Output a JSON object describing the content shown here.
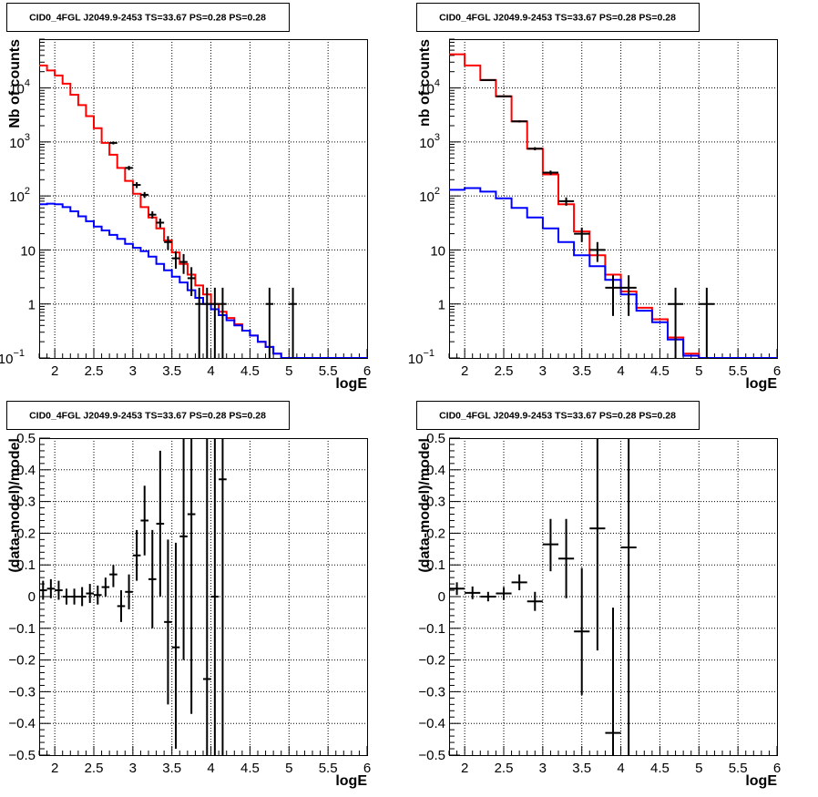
{
  "chart_data": [
    {
      "type": "line",
      "title": "CID0_4FGL J2049.9-2453 TS=33.67 PS=0.28 PS=0.28",
      "xlabel": "logE",
      "ylabel": "Nb of counts",
      "xscale": "linear",
      "yscale": "log",
      "xlim": [
        1.8,
        6.0
      ],
      "ylim": [
        0.1,
        80000
      ],
      "grid": true,
      "xticks": [
        "2",
        "2.5",
        "3",
        "3.5",
        "4",
        "4.5",
        "5",
        "5.5",
        "6"
      ],
      "yticks": [
        {
          "v": 0.1,
          "label": "10",
          "sup": "−1"
        },
        {
          "v": 1,
          "label": "1",
          "sup": ""
        },
        {
          "v": 10,
          "label": "10",
          "sup": ""
        },
        {
          "v": 100,
          "label": "10",
          "sup": "2"
        },
        {
          "v": 1000,
          "label": "10",
          "sup": "3"
        },
        {
          "v": 10000,
          "label": "10",
          "sup": "4"
        }
      ],
      "series": [
        {
          "color": "#ff0000",
          "style": "step",
          "edges": [
            1.8,
            1.9,
            2.0,
            2.1,
            2.2,
            2.3,
            2.4,
            2.5,
            2.6,
            2.7,
            2.8,
            2.9,
            3.0,
            3.1,
            3.2,
            3.3,
            3.4,
            3.5,
            3.6,
            3.7,
            3.8,
            3.9,
            4.0,
            4.1,
            4.2,
            4.3,
            4.4,
            4.5,
            4.6,
            4.7,
            4.8,
            4.9,
            5.0,
            5.1,
            5.2,
            5.3,
            5.4,
            5.5,
            5.6,
            5.7,
            5.8,
            5.9,
            6.0
          ],
          "values": [
            26000,
            21000,
            17000,
            12000,
            7500,
            4800,
            3000,
            1800,
            960,
            580,
            330,
            190,
            110,
            62,
            40,
            25,
            15,
            9,
            5.5,
            3.5,
            2.2,
            1.5,
            1.0,
            0.72,
            0.55,
            0.42,
            0.32,
            0.26,
            0.2,
            0.16,
            0.12,
            0.1,
            0.1,
            0.1,
            0.1,
            0.1,
            0.1,
            0.1,
            0.1,
            0.1,
            0.1,
            0.1
          ]
        },
        {
          "color": "#0000ff",
          "style": "step",
          "edges": [
            1.8,
            1.9,
            2.0,
            2.1,
            2.2,
            2.3,
            2.4,
            2.5,
            2.6,
            2.7,
            2.8,
            2.9,
            3.0,
            3.1,
            3.2,
            3.3,
            3.4,
            3.5,
            3.6,
            3.7,
            3.8,
            3.9,
            4.0,
            4.1,
            4.2,
            4.3,
            4.4,
            4.5,
            4.6,
            4.7,
            4.8,
            4.9,
            5.0,
            5.1,
            5.2,
            5.3,
            5.4,
            5.5,
            5.6,
            5.7,
            5.8,
            5.9,
            6.0
          ],
          "values": [
            70,
            72,
            70,
            62,
            52,
            42,
            34,
            27,
            23,
            19,
            16,
            13,
            11,
            9.5,
            7.5,
            5.5,
            4.2,
            3.2,
            2.5,
            1.8,
            1.3,
            1.0,
            0.8,
            0.62,
            0.5,
            0.4,
            0.32,
            0.26,
            0.2,
            0.16,
            0.12,
            0.1,
            0.1,
            0.1,
            0.1,
            0.1,
            0.1,
            0.1,
            0.1,
            0.1,
            0.1,
            0.1
          ]
        },
        {
          "color": "#000000",
          "style": "errorbar",
          "xerr": 0.05,
          "points": [
            {
              "x": 2.75,
              "y": 960,
              "lo": 900,
              "hi": 1020
            },
            {
              "x": 2.95,
              "y": 330,
              "lo": 300,
              "hi": 360
            },
            {
              "x": 3.05,
              "y": 160,
              "lo": 140,
              "hi": 180
            },
            {
              "x": 3.15,
              "y": 105,
              "lo": 92,
              "hi": 118
            },
            {
              "x": 3.25,
              "y": 45,
              "lo": 38,
              "hi": 52
            },
            {
              "x": 3.35,
              "y": 32,
              "lo": 26,
              "hi": 38
            },
            {
              "x": 3.45,
              "y": 14,
              "lo": 10,
              "hi": 18
            },
            {
              "x": 3.55,
              "y": 7,
              "lo": 4.5,
              "hi": 9.5
            },
            {
              "x": 3.65,
              "y": 6,
              "lo": 3.6,
              "hi": 8.4
            },
            {
              "x": 3.75,
              "y": 3,
              "lo": 1.4,
              "hi": 4.8
            },
            {
              "x": 3.85,
              "y": 1,
              "lo": 0.1,
              "hi": 2
            },
            {
              "x": 3.95,
              "y": 1,
              "lo": 0.1,
              "hi": 2
            },
            {
              "x": 4.05,
              "y": 1,
              "lo": 0.1,
              "hi": 2
            },
            {
              "x": 4.15,
              "y": 1,
              "lo": 0.1,
              "hi": 2
            },
            {
              "x": 4.75,
              "y": 1,
              "lo": 0.1,
              "hi": 2
            },
            {
              "x": 5.05,
              "y": 1,
              "lo": 0.1,
              "hi": 2
            }
          ]
        }
      ]
    },
    {
      "type": "line",
      "title": "CID0_4FGL J2049.9-2453 TS=33.67 PS=0.28 PS=0.28",
      "xlabel": "logE",
      "ylabel": "nb of counts",
      "xscale": "linear",
      "yscale": "log",
      "xlim": [
        1.8,
        6.0
      ],
      "ylim": [
        0.1,
        80000
      ],
      "grid": true,
      "xticks": [
        "2",
        "2.5",
        "3",
        "3.5",
        "4",
        "4.5",
        "5",
        "5.5",
        "6"
      ],
      "yticks": [
        {
          "v": 0.1,
          "label": "10",
          "sup": "−1"
        },
        {
          "v": 1,
          "label": "1",
          "sup": ""
        },
        {
          "v": 10,
          "label": "10",
          "sup": ""
        },
        {
          "v": 100,
          "label": "10",
          "sup": "2"
        },
        {
          "v": 1000,
          "label": "10",
          "sup": "3"
        },
        {
          "v": 10000,
          "label": "10",
          "sup": "4"
        }
      ],
      "series": [
        {
          "color": "#ff0000",
          "style": "step",
          "edges": [
            1.8,
            2.0,
            2.2,
            2.4,
            2.6,
            2.8,
            3.0,
            3.2,
            3.4,
            3.6,
            3.8,
            4.0,
            4.2,
            4.4,
            4.6,
            4.8,
            5.0,
            5.2,
            5.4,
            5.6,
            5.8,
            6.0
          ],
          "values": [
            42000,
            26000,
            14000,
            7000,
            2400,
            750,
            250,
            70,
            22,
            8,
            3.5,
            1.7,
            0.85,
            0.52,
            0.24,
            0.12,
            0.1,
            0.1,
            0.1,
            0.1,
            0.1
          ]
        },
        {
          "color": "#0000ff",
          "style": "step",
          "edges": [
            1.8,
            2.0,
            2.2,
            2.4,
            2.6,
            2.8,
            3.0,
            3.2,
            3.4,
            3.6,
            3.8,
            4.0,
            4.2,
            4.4,
            4.6,
            4.8,
            5.0,
            5.2,
            5.4,
            5.6,
            5.8,
            6.0
          ],
          "values": [
            130,
            140,
            120,
            90,
            60,
            40,
            25,
            14,
            8,
            5,
            2.8,
            1.5,
            0.75,
            0.46,
            0.22,
            0.11,
            0.1,
            0.1,
            0.1,
            0.1,
            0.1
          ]
        },
        {
          "color": "#000000",
          "style": "errorbar",
          "xerr": 0.1,
          "points": [
            {
              "x": 2.3,
              "y": 14000,
              "lo": 13600,
              "hi": 14400
            },
            {
              "x": 2.5,
              "y": 7000,
              "lo": 6700,
              "hi": 7300
            },
            {
              "x": 2.7,
              "y": 2400,
              "lo": 2300,
              "hi": 2500
            },
            {
              "x": 2.9,
              "y": 750,
              "lo": 700,
              "hi": 800
            },
            {
              "x": 3.1,
              "y": 270,
              "lo": 245,
              "hi": 295
            },
            {
              "x": 3.3,
              "y": 80,
              "lo": 66,
              "hi": 94
            },
            {
              "x": 3.5,
              "y": 20,
              "lo": 14,
              "hi": 26
            },
            {
              "x": 3.7,
              "y": 10,
              "lo": 6,
              "hi": 14
            },
            {
              "x": 3.9,
              "y": 2,
              "lo": 0.6,
              "hi": 3.4
            },
            {
              "x": 4.1,
              "y": 2,
              "lo": 0.6,
              "hi": 3.4
            },
            {
              "x": 4.7,
              "y": 1,
              "lo": 0.1,
              "hi": 2
            },
            {
              "x": 5.1,
              "y": 1,
              "lo": 0.1,
              "hi": 2
            }
          ]
        }
      ]
    },
    {
      "type": "scatter",
      "title": "CID0_4FGL J2049.9-2453 TS=33.67 PS=0.28 PS=0.28",
      "xlabel": "logE",
      "ylabel": "(data-model)/model",
      "xscale": "linear",
      "yscale": "linear",
      "xlim": [
        1.8,
        6.0
      ],
      "ylim": [
        -0.5,
        0.5
      ],
      "grid": true,
      "xticks": [
        "2",
        "2.5",
        "3",
        "3.5",
        "4",
        "4.5",
        "5",
        "5.5",
        "6"
      ],
      "yticks": [
        "−0.5",
        "−0.4",
        "−0.3",
        "−0.2",
        "−0.1",
        "0",
        "0.1",
        "0.2",
        "0.3",
        "0.4",
        "0.5"
      ],
      "series": [
        {
          "color": "#000000",
          "style": "errorbar",
          "xerr": 0.05,
          "points": [
            {
              "x": 1.85,
              "y": 0.02,
              "lo": -0.01,
              "hi": 0.05
            },
            {
              "x": 1.95,
              "y": 0.025,
              "lo": -0.005,
              "hi": 0.055
            },
            {
              "x": 2.05,
              "y": 0.02,
              "lo": -0.01,
              "hi": 0.05
            },
            {
              "x": 2.15,
              "y": 0.0,
              "lo": -0.025,
              "hi": 0.025
            },
            {
              "x": 2.25,
              "y": 0.0,
              "lo": -0.025,
              "hi": 0.025
            },
            {
              "x": 2.35,
              "y": 0.0,
              "lo": -0.03,
              "hi": 0.03
            },
            {
              "x": 2.45,
              "y": 0.01,
              "lo": -0.02,
              "hi": 0.04
            },
            {
              "x": 2.55,
              "y": 0.005,
              "lo": -0.025,
              "hi": 0.035
            },
            {
              "x": 2.65,
              "y": 0.03,
              "lo": 0.0,
              "hi": 0.06
            },
            {
              "x": 2.75,
              "y": 0.07,
              "lo": 0.03,
              "hi": 0.1
            },
            {
              "x": 2.85,
              "y": -0.03,
              "lo": -0.08,
              "hi": 0.02
            },
            {
              "x": 2.95,
              "y": 0.015,
              "lo": -0.04,
              "hi": 0.07
            },
            {
              "x": 3.05,
              "y": 0.13,
              "lo": 0.05,
              "hi": 0.21
            },
            {
              "x": 3.15,
              "y": 0.24,
              "lo": 0.13,
              "hi": 0.35
            },
            {
              "x": 3.25,
              "y": 0.055,
              "lo": -0.1,
              "hi": 0.21
            },
            {
              "x": 3.35,
              "y": 0.23,
              "lo": 0.0,
              "hi": 0.46
            },
            {
              "x": 3.45,
              "y": -0.08,
              "lo": -0.34,
              "hi": 0.18
            },
            {
              "x": 3.55,
              "y": -0.16,
              "lo": -0.48,
              "hi": 0.17
            },
            {
              "x": 3.65,
              "y": 0.19,
              "lo": -0.2,
              "hi": 0.5
            },
            {
              "x": 3.75,
              "y": 0.26,
              "lo": -0.37,
              "hi": 0.5
            },
            {
              "x": 3.95,
              "y": -0.26,
              "lo": -0.5,
              "hi": 0.5
            },
            {
              "x": 4.05,
              "y": 0.0,
              "lo": -0.5,
              "hi": 0.5
            },
            {
              "x": 4.15,
              "y": 0.37,
              "lo": -0.5,
              "hi": 0.5
            }
          ]
        }
      ]
    },
    {
      "type": "scatter",
      "title": "CID0_4FGL J2049.9-2453 TS=33.67 PS=0.28 PS=0.28",
      "xlabel": "logE",
      "ylabel": "(data-model)/model",
      "xscale": "linear",
      "yscale": "linear",
      "xlim": [
        1.8,
        6.0
      ],
      "ylim": [
        -0.5,
        0.5
      ],
      "grid": true,
      "xticks": [
        "2",
        "2.5",
        "3",
        "3.5",
        "4",
        "4.5",
        "5",
        "5.5",
        "6"
      ],
      "yticks": [
        "−0.5",
        "−0.4",
        "−0.3",
        "−0.2",
        "−0.1",
        "0",
        "0.1",
        "0.2",
        "0.3",
        "0.4",
        "0.5"
      ],
      "series": [
        {
          "color": "#000000",
          "style": "errorbar",
          "xerr": 0.1,
          "points": [
            {
              "x": 1.9,
              "y": 0.025,
              "lo": 0.005,
              "hi": 0.045
            },
            {
              "x": 2.1,
              "y": 0.012,
              "lo": -0.008,
              "hi": 0.032
            },
            {
              "x": 2.3,
              "y": 0.0,
              "lo": -0.015,
              "hi": 0.015
            },
            {
              "x": 2.5,
              "y": 0.01,
              "lo": -0.01,
              "hi": 0.03
            },
            {
              "x": 2.7,
              "y": 0.045,
              "lo": 0.02,
              "hi": 0.07
            },
            {
              "x": 2.9,
              "y": -0.015,
              "lo": -0.045,
              "hi": 0.015
            },
            {
              "x": 3.1,
              "y": 0.165,
              "lo": 0.08,
              "hi": 0.245
            },
            {
              "x": 3.3,
              "y": 0.12,
              "lo": -0.005,
              "hi": 0.245
            },
            {
              "x": 3.5,
              "y": -0.11,
              "lo": -0.31,
              "hi": 0.09
            },
            {
              "x": 3.7,
              "y": 0.215,
              "lo": -0.17,
              "hi": 0.5
            },
            {
              "x": 3.9,
              "y": -0.43,
              "lo": -0.5,
              "hi": -0.035
            },
            {
              "x": 4.1,
              "y": 0.155,
              "lo": -0.5,
              "hi": 0.5
            }
          ]
        }
      ]
    }
  ]
}
